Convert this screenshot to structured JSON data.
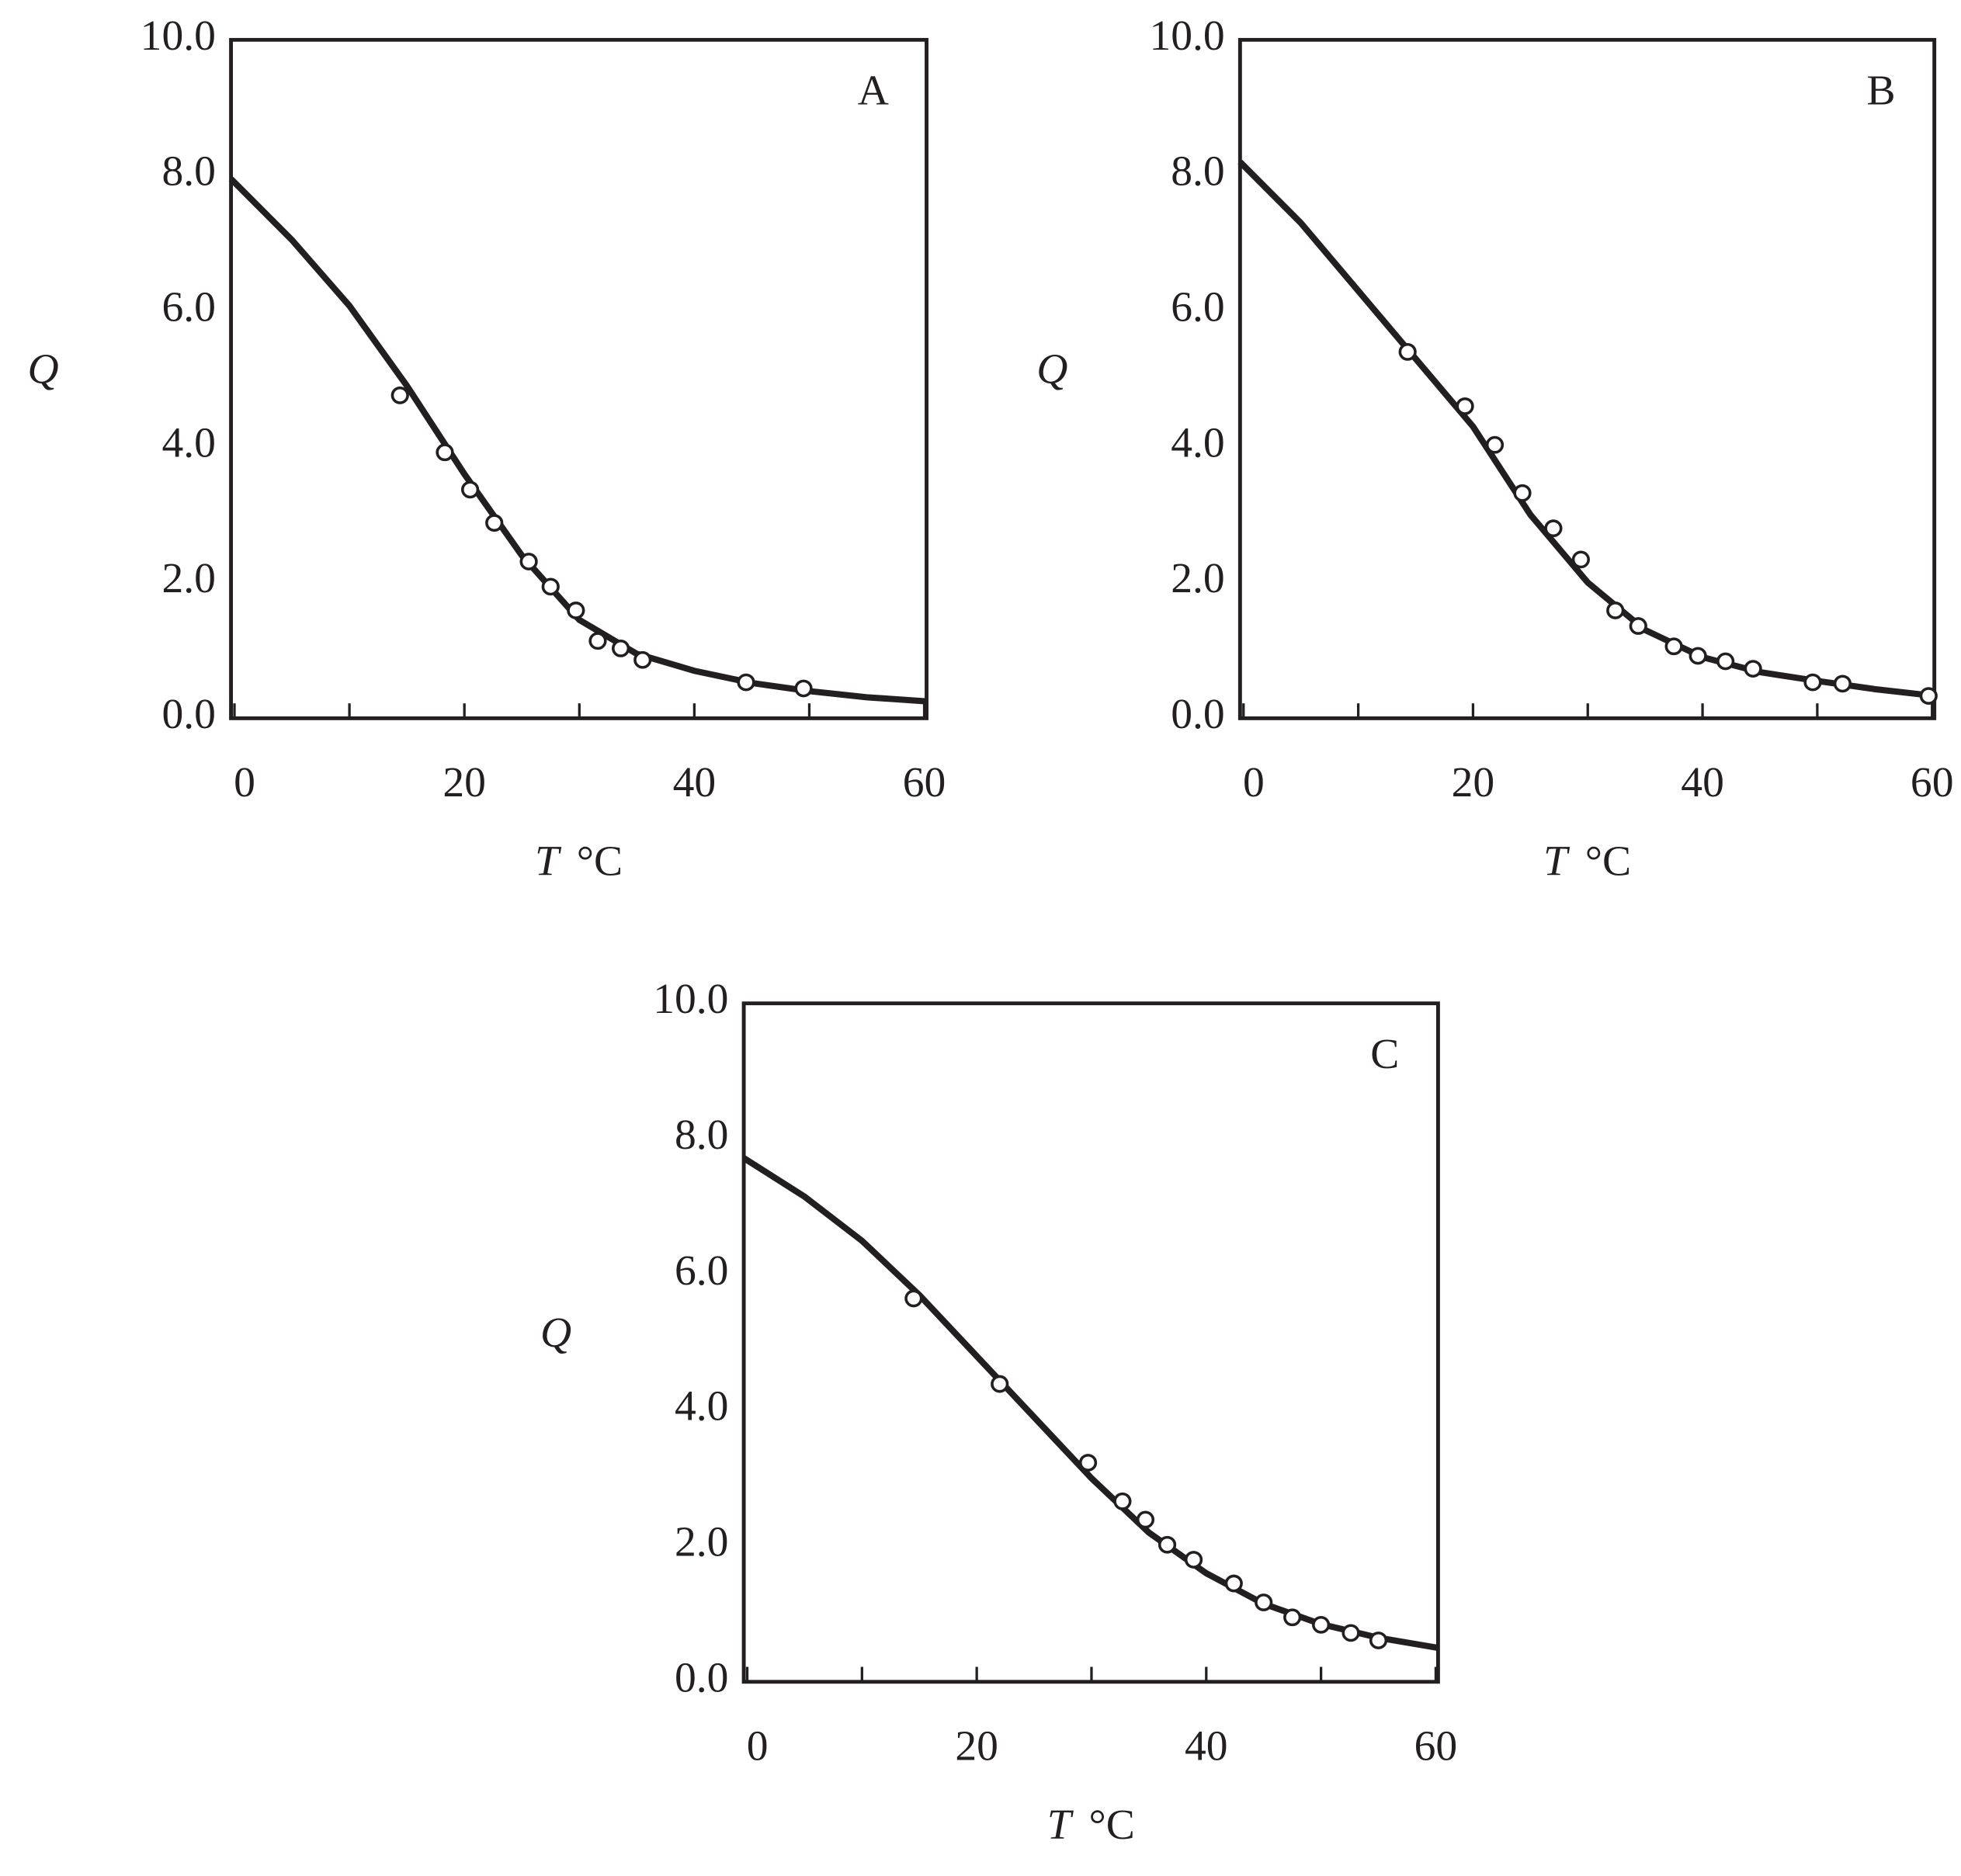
{
  "chart_data": [
    {
      "type": "scatter",
      "label": "A",
      "ylabel": "Q",
      "xlabel": {
        "symbol": "T",
        "unit": "°C"
      },
      "xlim": [
        -0.3,
        60.2
      ],
      "ylim": [
        0,
        10
      ],
      "xticks": [
        0,
        20,
        40,
        60
      ],
      "xminor": [
        10,
        30,
        50
      ],
      "yticks": [
        {
          "value": 0,
          "label": "0.0"
        },
        {
          "value": 2,
          "label": "2.0"
        },
        {
          "value": 4,
          "label": "4.0"
        },
        {
          "value": 6,
          "label": "6.0"
        },
        {
          "value": 8,
          "label": "8.0"
        },
        {
          "value": 10,
          "label": "10.0"
        }
      ],
      "color": "#231f20",
      "points": {
        "x": [
          14.4,
          18.3,
          20.5,
          22.6,
          25.6,
          27.5,
          29.7,
          31.6,
          33.6,
          35.5,
          44.5,
          49.5
        ],
        "y": [
          4.76,
          3.92,
          3.37,
          2.88,
          2.31,
          1.94,
          1.59,
          1.14,
          1.03,
          0.86,
          0.53,
          0.44
        ]
      },
      "curve": {
        "x": [
          -0.3,
          5,
          10,
          15,
          20,
          25,
          30,
          35,
          40,
          45,
          50,
          55,
          60.2
        ],
        "y": [
          7.95,
          7.05,
          6.08,
          4.9,
          3.6,
          2.4,
          1.45,
          0.95,
          0.7,
          0.52,
          0.4,
          0.31,
          0.25
        ]
      }
    },
    {
      "type": "scatter",
      "label": "B",
      "ylabel": "Q",
      "xlabel": {
        "symbol": "T",
        "unit": "°C"
      },
      "xlim": [
        -0.3,
        60.2
      ],
      "ylim": [
        0,
        10
      ],
      "xticks": [
        0,
        20,
        40,
        60
      ],
      "xminor": [
        10,
        30,
        50
      ],
      "yticks": [
        {
          "value": 0,
          "label": "0.0"
        },
        {
          "value": 2,
          "label": "2.0"
        },
        {
          "value": 4,
          "label": "4.0"
        },
        {
          "value": 6,
          "label": "6.0"
        },
        {
          "value": 8,
          "label": "8.0"
        },
        {
          "value": 10,
          "label": "10.0"
        }
      ],
      "color": "#231f20",
      "points": {
        "x": [
          14.3,
          19.3,
          21.9,
          24.3,
          27.0,
          29.4,
          32.4,
          34.4,
          37.5,
          39.6,
          42.0,
          44.4,
          49.6,
          52.2,
          59.7
        ],
        "y": [
          5.4,
          4.6,
          4.03,
          3.32,
          2.8,
          2.34,
          1.59,
          1.36,
          1.06,
          0.92,
          0.84,
          0.73,
          0.53,
          0.51,
          0.33
        ]
      },
      "curve": {
        "x": [
          -0.3,
          5,
          10,
          15,
          20,
          25,
          30,
          35,
          40,
          45,
          50,
          55,
          60.2
        ],
        "y": [
          8.2,
          7.3,
          6.3,
          5.3,
          4.3,
          3.0,
          2.0,
          1.3,
          0.9,
          0.68,
          0.55,
          0.43,
          0.33
        ]
      }
    },
    {
      "type": "scatter",
      "label": "C",
      "ylabel": "Q",
      "xlabel": {
        "symbol": "T",
        "unit": "°C"
      },
      "xlim": [
        -0.3,
        60.2
      ],
      "ylim": [
        0,
        10
      ],
      "xticks": [
        0,
        20,
        40,
        60
      ],
      "xminor": [
        10,
        30,
        50
      ],
      "yticks": [
        {
          "value": 0,
          "label": "0.0"
        },
        {
          "value": 2,
          "label": "2.0"
        },
        {
          "value": 4,
          "label": "4.0"
        },
        {
          "value": 6,
          "label": "6.0"
        },
        {
          "value": 8,
          "label": "8.0"
        },
        {
          "value": 10,
          "label": "10.0"
        }
      ],
      "color": "#231f20",
      "points": {
        "x": [
          14.5,
          22.0,
          29.7,
          32.7,
          34.7,
          36.6,
          38.9,
          42.4,
          45.0,
          47.5,
          50.0,
          52.6,
          55.0
        ],
        "y": [
          5.65,
          4.39,
          3.23,
          2.66,
          2.39,
          2.02,
          1.8,
          1.45,
          1.17,
          0.95,
          0.84,
          0.72,
          0.61
        ]
      },
      "curve": {
        "x": [
          -0.3,
          5,
          10,
          15,
          20,
          25,
          30,
          35,
          40,
          45,
          50,
          55,
          60.2
        ],
        "y": [
          7.72,
          7.15,
          6.5,
          5.7,
          4.8,
          3.9,
          3.0,
          2.2,
          1.6,
          1.15,
          0.85,
          0.65,
          0.5
        ]
      }
    }
  ]
}
